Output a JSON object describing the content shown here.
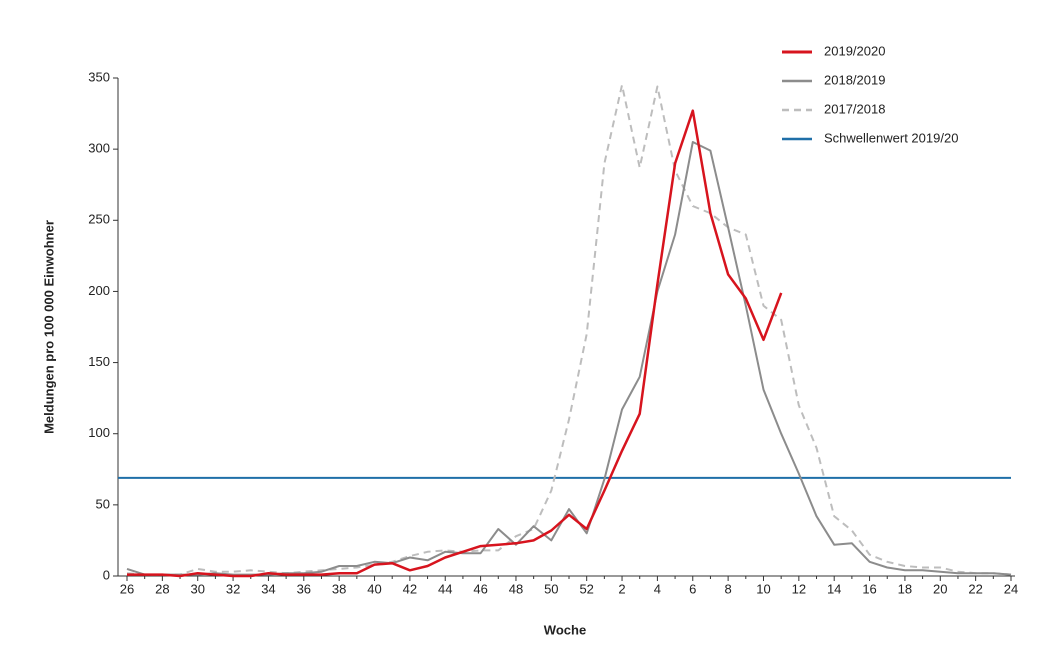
{
  "chart_data": {
    "type": "line",
    "y_label": "Meldungen pro 100 000 Einwohner",
    "x_label": "Woche",
    "categories": [
      "26",
      null,
      "28",
      null,
      "30",
      null,
      "32",
      null,
      "34",
      null,
      "36",
      null,
      "38",
      null,
      "40",
      null,
      "42",
      null,
      "44",
      null,
      "46",
      null,
      "48",
      null,
      "50",
      null,
      "52",
      null,
      "2",
      null,
      "4",
      null,
      "6",
      null,
      "8",
      null,
      "10",
      null,
      "12",
      null,
      "14",
      null,
      "16",
      null,
      "18",
      null,
      "20",
      null,
      "22",
      null,
      "24"
    ],
    "series": [
      {
        "name": "2019/2020",
        "color": "#d7141e",
        "dashed": false,
        "width": 2.5,
        "values": [
          1,
          1,
          1,
          0,
          2,
          1,
          0,
          0,
          2,
          1,
          1,
          1,
          2,
          2,
          8,
          9,
          4,
          7,
          13,
          17,
          21,
          22,
          23,
          25,
          32,
          43,
          33,
          60,
          88,
          114,
          205,
          290,
          327,
          255,
          212,
          195,
          166,
          199,
          null,
          null,
          null,
          null,
          null,
          null,
          null,
          null,
          null,
          null,
          null,
          null,
          null
        ]
      },
      {
        "name": "2018/2019",
        "color": "#8c8c8c",
        "dashed": false,
        "width": 2,
        "values": [
          5,
          1,
          1,
          1,
          1,
          2,
          1,
          1,
          1,
          2,
          2,
          3,
          7,
          7,
          10,
          9,
          13,
          11,
          17,
          16,
          16,
          33,
          22,
          35,
          25,
          47,
          30,
          68,
          117,
          140,
          200,
          240,
          305,
          299,
          245,
          190,
          131,
          100,
          72,
          42,
          22,
          23,
          10,
          6,
          4,
          4,
          3,
          2,
          2,
          2,
          1
        ]
      },
      {
        "name": "2017/2018",
        "color": "#bdbdbd",
        "dashed": true,
        "width": 2,
        "values": [
          2,
          1,
          1,
          1,
          5,
          3,
          3,
          4,
          3,
          2,
          3,
          4,
          5,
          6,
          8,
          10,
          14,
          17,
          18,
          17,
          18,
          18,
          28,
          33,
          60,
          110,
          170,
          290,
          345,
          287,
          344,
          285,
          260,
          255,
          245,
          240,
          190,
          180,
          120,
          90,
          42,
          32,
          15,
          10,
          7,
          6,
          6,
          3,
          2,
          2,
          1
        ]
      }
    ],
    "threshold": {
      "name": "Schwellenwert 2019/20",
      "color": "#1f6fa8",
      "value": 69
    },
    "ylim": [
      0,
      350
    ],
    "yticks": [
      0,
      50,
      100,
      150,
      200,
      250,
      300,
      350
    ]
  }
}
